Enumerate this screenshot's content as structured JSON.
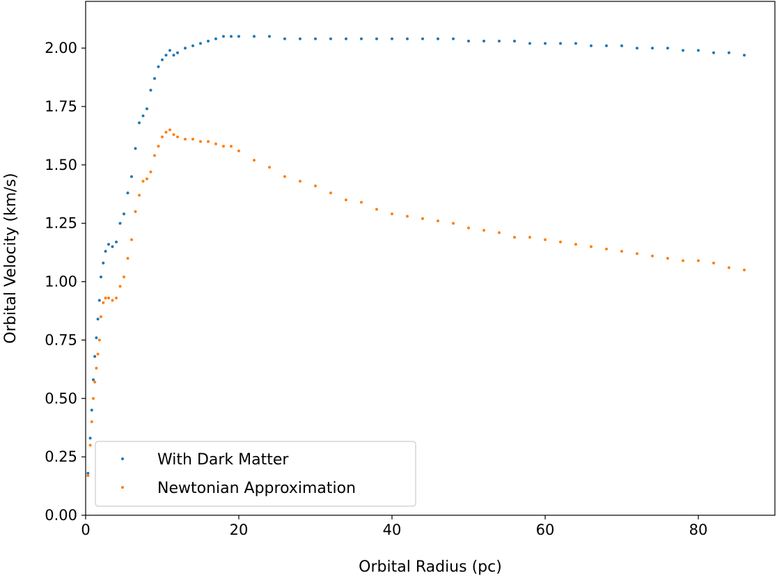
{
  "chart_data": {
    "type": "scatter",
    "title": "",
    "xlabel": "Orbital Radius (pc)",
    "ylabel": "Orbital Velocity (km/s)",
    "xlim": [
      0,
      90
    ],
    "ylim": [
      0,
      2.2
    ],
    "xticks": [
      0,
      20,
      40,
      60,
      80
    ],
    "xtick_labels": [
      "0",
      "20",
      "40",
      "60",
      "80"
    ],
    "yticks": [
      0,
      0.25,
      0.5,
      0.75,
      1.0,
      1.25,
      1.5,
      1.75,
      2.0
    ],
    "ytick_labels": [
      "0.00",
      "0.25",
      "0.50",
      "0.75",
      "1.00",
      "1.25",
      "1.50",
      "1.75",
      "2.00"
    ],
    "grid": false,
    "legend_position": "lower-left",
    "series": [
      {
        "name": "With Dark Matter",
        "color": "#1f77b4",
        "x": [
          0.3,
          0.6,
          0.8,
          1.0,
          1.2,
          1.4,
          1.6,
          1.8,
          2.0,
          2.3,
          2.6,
          3.0,
          3.5,
          4.0,
          4.5,
          5.0,
          5.5,
          6.0,
          6.5,
          7.0,
          7.5,
          8.0,
          8.5,
          9.0,
          9.5,
          10.0,
          10.5,
          11.0,
          11.5,
          12.0,
          13.0,
          14.0,
          15.0,
          16.0,
          17.0,
          18.0,
          19.0,
          20.0,
          22.0,
          24.0,
          26.0,
          28.0,
          30.0,
          32.0,
          34.0,
          36.0,
          38.0,
          40.0,
          42.0,
          44.0,
          46.0,
          48.0,
          50.0,
          52.0,
          54.0,
          56.0,
          58.0,
          60.0,
          62.0,
          64.0,
          66.0,
          68.0,
          70.0,
          72.0,
          74.0,
          76.0,
          78.0,
          80.0,
          82.0,
          84.0,
          86.0
        ],
        "y": [
          0.18,
          0.33,
          0.45,
          0.58,
          0.68,
          0.76,
          0.84,
          0.92,
          1.02,
          1.08,
          1.13,
          1.16,
          1.15,
          1.17,
          1.25,
          1.29,
          1.38,
          1.45,
          1.57,
          1.68,
          1.71,
          1.74,
          1.82,
          1.87,
          1.92,
          1.95,
          1.97,
          1.99,
          1.97,
          1.98,
          2.0,
          2.01,
          2.02,
          2.03,
          2.04,
          2.05,
          2.05,
          2.05,
          2.05,
          2.05,
          2.04,
          2.04,
          2.04,
          2.04,
          2.04,
          2.04,
          2.04,
          2.04,
          2.04,
          2.04,
          2.04,
          2.04,
          2.03,
          2.03,
          2.03,
          2.03,
          2.02,
          2.02,
          2.02,
          2.02,
          2.01,
          2.01,
          2.01,
          2.0,
          2.0,
          2.0,
          1.99,
          1.99,
          1.98,
          1.98,
          1.97
        ]
      },
      {
        "name": "Newtonian Approximation",
        "color": "#ff7f0e",
        "x": [
          0.3,
          0.6,
          0.8,
          1.0,
          1.2,
          1.4,
          1.6,
          1.8,
          2.0,
          2.3,
          2.6,
          3.0,
          3.5,
          4.0,
          4.5,
          5.0,
          5.5,
          6.0,
          6.5,
          7.0,
          7.5,
          8.0,
          8.5,
          9.0,
          9.5,
          10.0,
          10.5,
          11.0,
          11.5,
          12.0,
          13.0,
          14.0,
          15.0,
          16.0,
          17.0,
          18.0,
          19.0,
          20.0,
          22.0,
          24.0,
          26.0,
          28.0,
          30.0,
          32.0,
          34.0,
          36.0,
          38.0,
          40.0,
          42.0,
          44.0,
          46.0,
          48.0,
          50.0,
          52.0,
          54.0,
          56.0,
          58.0,
          60.0,
          62.0,
          64.0,
          66.0,
          68.0,
          70.0,
          72.0,
          74.0,
          76.0,
          78.0,
          80.0,
          82.0,
          84.0,
          86.0
        ],
        "y": [
          0.17,
          0.3,
          0.4,
          0.5,
          0.57,
          0.63,
          0.69,
          0.75,
          0.85,
          0.91,
          0.93,
          0.93,
          0.92,
          0.93,
          0.98,
          1.02,
          1.1,
          1.18,
          1.3,
          1.37,
          1.43,
          1.44,
          1.47,
          1.54,
          1.58,
          1.62,
          1.64,
          1.65,
          1.63,
          1.62,
          1.61,
          1.61,
          1.6,
          1.6,
          1.59,
          1.58,
          1.58,
          1.56,
          1.52,
          1.49,
          1.45,
          1.43,
          1.41,
          1.38,
          1.35,
          1.34,
          1.31,
          1.29,
          1.28,
          1.27,
          1.26,
          1.25,
          1.23,
          1.22,
          1.21,
          1.19,
          1.19,
          1.18,
          1.17,
          1.16,
          1.15,
          1.14,
          1.13,
          1.12,
          1.11,
          1.1,
          1.09,
          1.09,
          1.08,
          1.06,
          1.05
        ]
      }
    ]
  }
}
